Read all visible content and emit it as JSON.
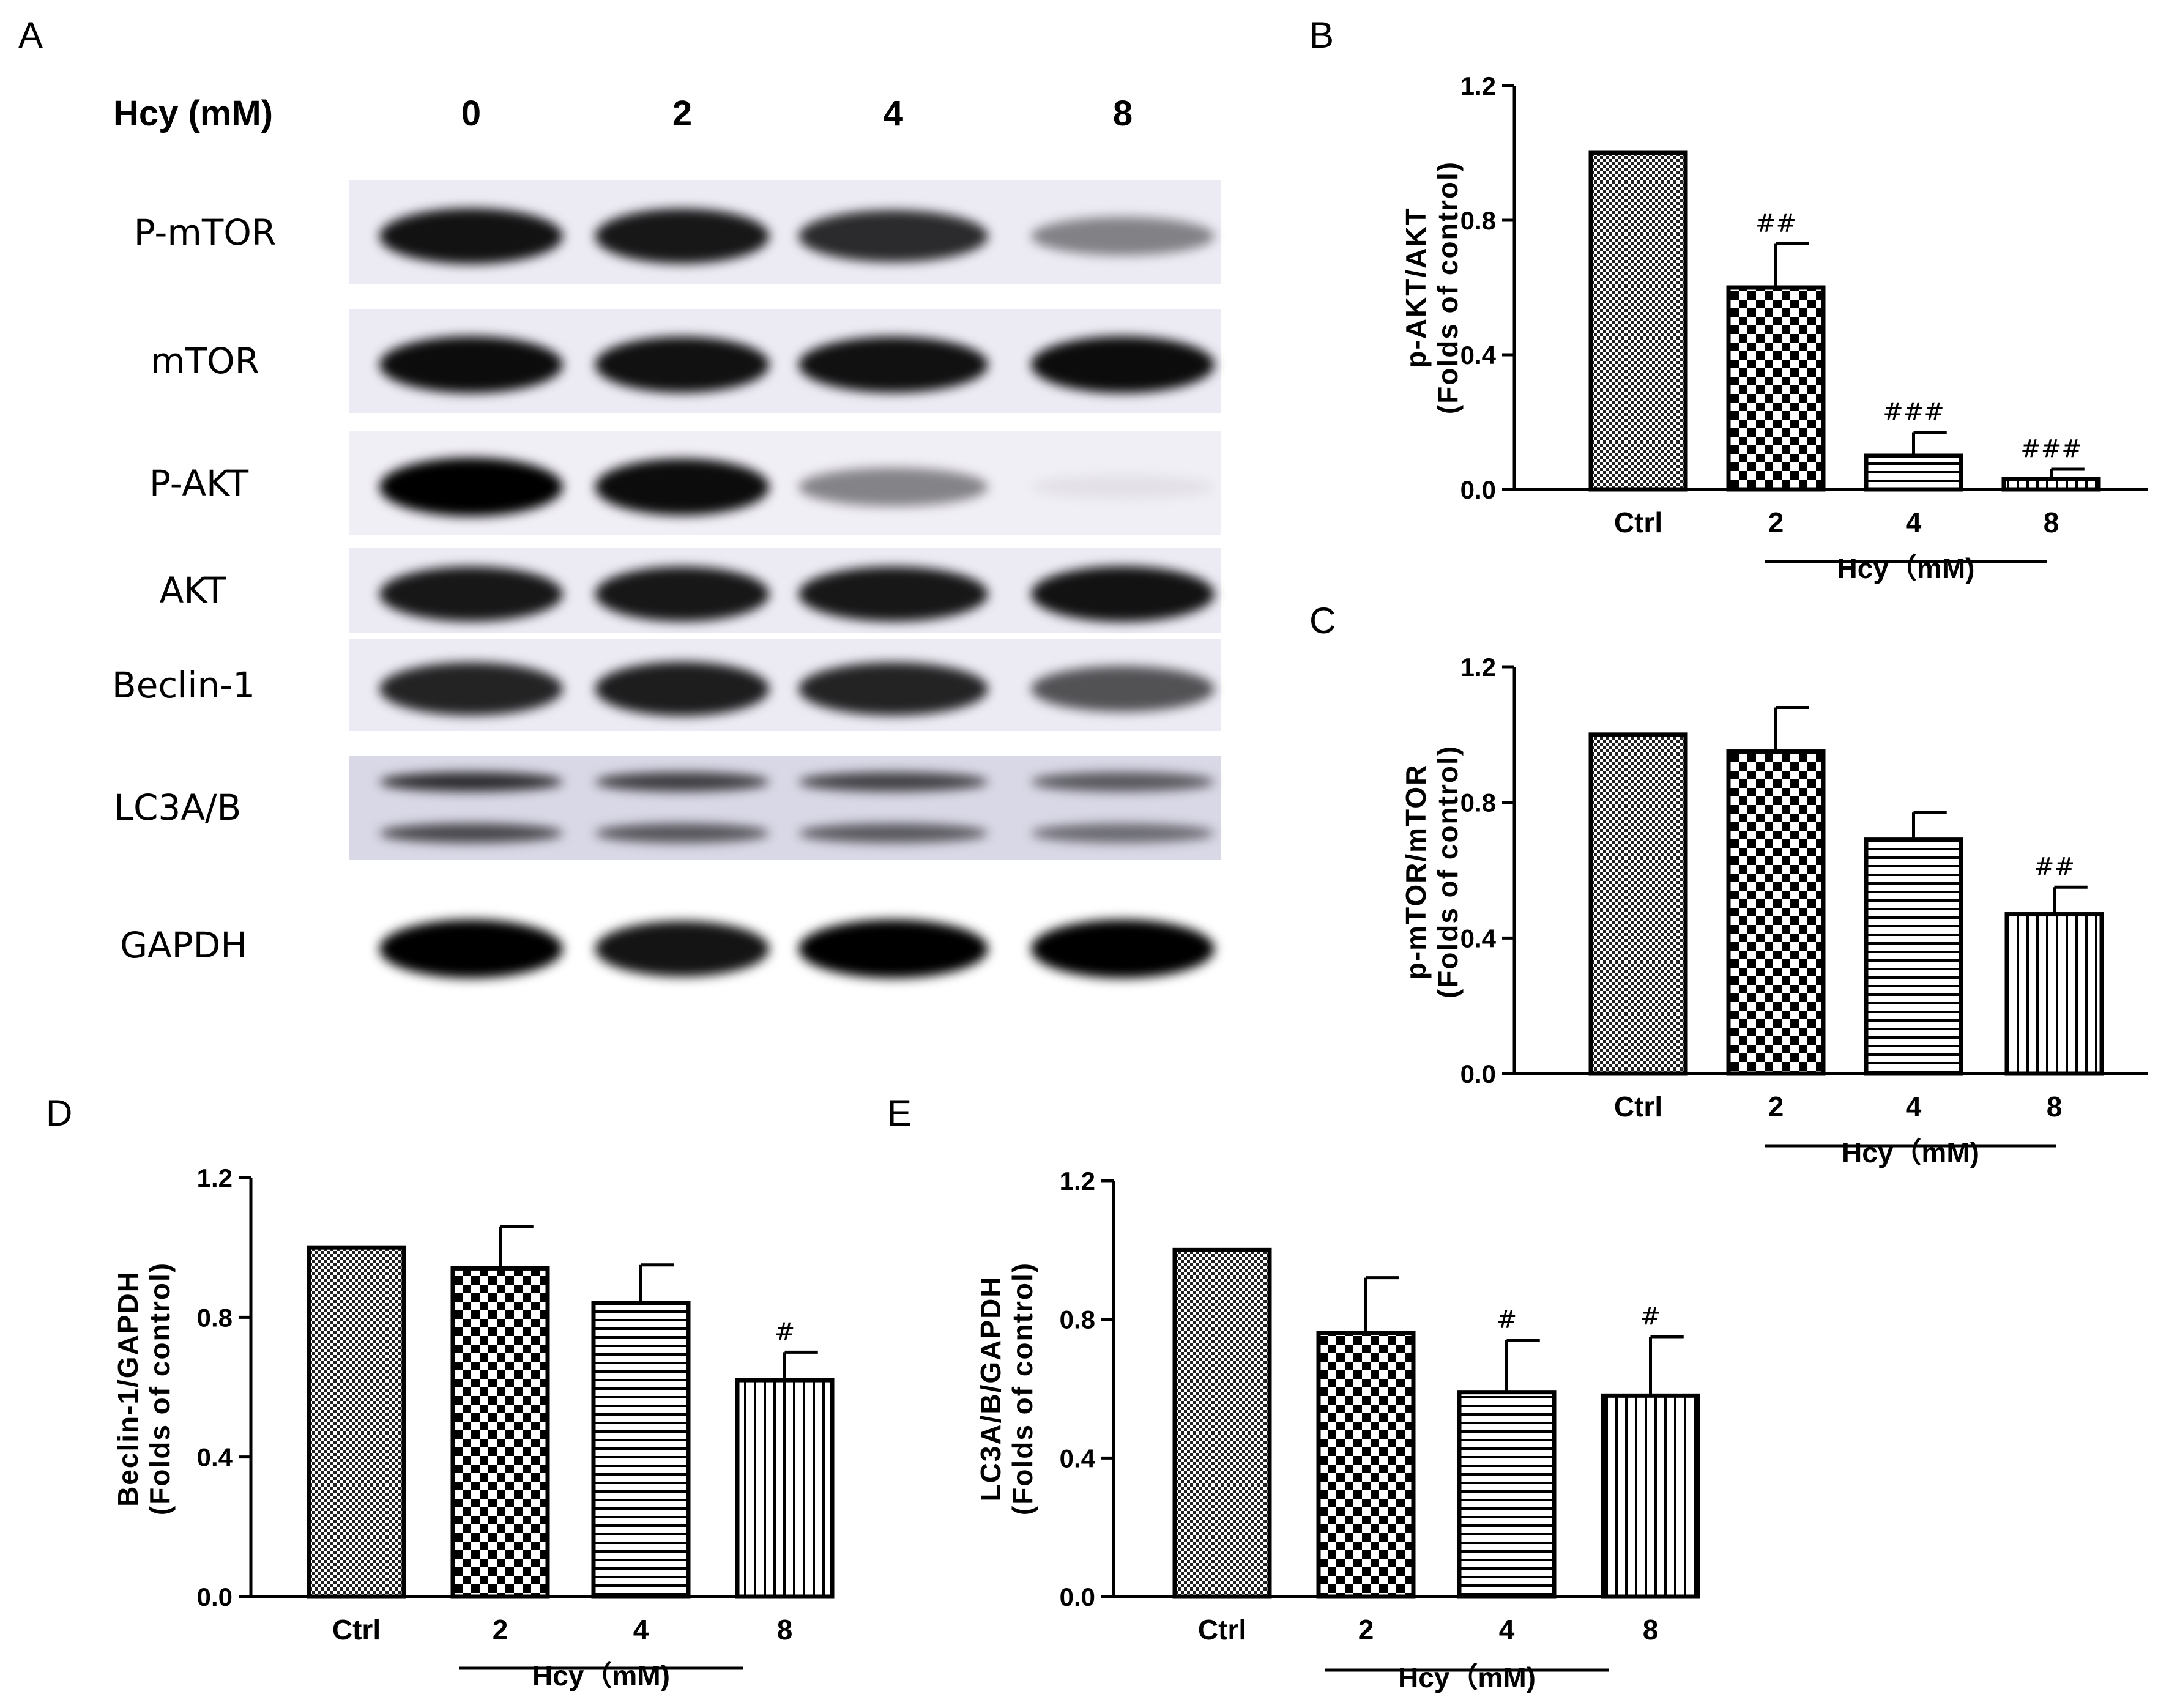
{
  "panel_a": {
    "letter": "A",
    "header_label": "Hcy (mM)",
    "lanes": [
      "0",
      "2",
      "4",
      "8"
    ],
    "rows": [
      {
        "label": "P-mTOR",
        "intensity": [
          0.92,
          0.9,
          0.82,
          0.45
        ],
        "bg": "#ecebf4"
      },
      {
        "label": "mTOR",
        "intensity": [
          0.95,
          0.93,
          0.93,
          0.95
        ],
        "bg": "#ecebf4"
      },
      {
        "label": "P-AKT",
        "intensity": [
          1.0,
          0.95,
          0.45,
          0.06
        ],
        "bg": "#f1eff6"
      },
      {
        "label": "AKT",
        "intensity": [
          0.9,
          0.9,
          0.9,
          0.92
        ],
        "bg": "#ecebf4"
      },
      {
        "label": "Beclin-1",
        "intensity": [
          0.85,
          0.88,
          0.85,
          0.65
        ],
        "bg": "#ecebf4"
      },
      {
        "label": "LC3A/B",
        "intensity": [
          0.8,
          0.72,
          0.7,
          0.6
        ],
        "bg": "#d9d8e6"
      },
      {
        "label": "GAPDH",
        "intensity": [
          1.0,
          0.92,
          1.0,
          1.0
        ],
        "bg": "#ffffff"
      }
    ]
  },
  "chart_data": [
    {
      "panel": "B",
      "type": "bar",
      "categories": [
        "Ctrl",
        "2",
        "4",
        "8"
      ],
      "values": [
        1.0,
        0.6,
        0.1,
        0.03
      ],
      "errors": [
        0,
        0.13,
        0.07,
        0.03
      ],
      "annotations": [
        "",
        "##",
        "###",
        "###"
      ],
      "ylabel_line1": "p-AKT/AKT",
      "ylabel_line2": "(Folds of control)",
      "group_label": "Hcy（mM)",
      "ylim": [
        0,
        1.2
      ],
      "yticks": [
        "0.0",
        "0.4",
        "0.8",
        "1.2"
      ]
    },
    {
      "panel": "C",
      "type": "bar",
      "categories": [
        "Ctrl",
        "2",
        "4",
        "8"
      ],
      "values": [
        1.0,
        0.95,
        0.69,
        0.47
      ],
      "errors": [
        0,
        0.13,
        0.08,
        0.08
      ],
      "annotations": [
        "",
        "",
        "",
        "##"
      ],
      "ylabel_line1": "p-mTOR/mTOR",
      "ylabel_line2": "(Folds of control)",
      "group_label": "Hcy（mM)",
      "ylim": [
        0,
        1.2
      ],
      "yticks": [
        "0.0",
        "0.4",
        "0.8",
        "1.2"
      ]
    },
    {
      "panel": "D",
      "type": "bar",
      "categories": [
        "Ctrl",
        "2",
        "4",
        "8"
      ],
      "values": [
        1.0,
        0.94,
        0.84,
        0.62
      ],
      "errors": [
        0,
        0.12,
        0.11,
        0.08
      ],
      "annotations": [
        "",
        "",
        "",
        "#"
      ],
      "ylabel_line1": "Beclin-1/GAPDH",
      "ylabel_line2": "(Folds of control)",
      "group_label": "Hcy（mM)",
      "ylim": [
        0,
        1.2
      ],
      "yticks": [
        "0.0",
        "0.4",
        "0.8",
        "1.2"
      ]
    },
    {
      "panel": "E",
      "type": "bar",
      "categories": [
        "Ctrl",
        "2",
        "4",
        "8"
      ],
      "values": [
        1.0,
        0.76,
        0.59,
        0.58
      ],
      "errors": [
        0,
        0.16,
        0.15,
        0.17
      ],
      "annotations": [
        "",
        "",
        "#",
        "#"
      ],
      "ylabel_line1": "LC3A/B/GAPDH",
      "ylabel_line2": "(Folds of control)",
      "group_label": "Hcy（mM)",
      "ylim": [
        0,
        1.2
      ],
      "yticks": [
        "0.0",
        "0.4",
        "0.8",
        "1.2"
      ]
    }
  ]
}
